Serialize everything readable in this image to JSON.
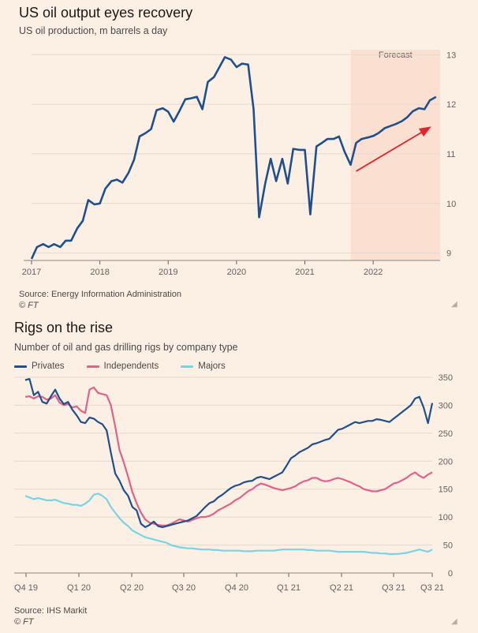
{
  "chart1": {
    "title": "US oil output eyes recovery",
    "subtitle": "US oil production, m barrels a day",
    "forecast_label": "Forecast",
    "source": "Source: Energy Information Administration",
    "credit": "© FT"
  },
  "chart2": {
    "title": "Rigs on the rise",
    "subtitle": "Number of oil and gas drilling rigs by company type",
    "source": "Source: IHS Markit",
    "credit": "© FT"
  },
  "colors": {
    "background": "#fcf0e5",
    "navy": "#1f4f8c",
    "pink": "#e0628a",
    "cyan": "#79d4e3",
    "forecast_shade": "#fbe0d2",
    "arrow": "#e2242f",
    "gridline": "#e3d8cf"
  },
  "chart_data": [
    {
      "type": "line",
      "title": "US oil output eyes recovery",
      "subtitle": "US oil production, m barrels a day",
      "x_ticks": [
        "2017",
        "2018",
        "2019",
        "2020",
        "2021",
        "2022"
      ],
      "y_ticks": [
        9,
        10,
        11,
        12,
        13
      ],
      "xlim": [
        2017.0,
        2022.98
      ],
      "ylim": [
        8.85,
        13.1
      ],
      "forecast_start": 2021.67,
      "annotation": "Forecast",
      "arrow": {
        "from": [
          2021.75,
          10.65
        ],
        "to": [
          2022.85,
          11.55
        ]
      },
      "series": [
        {
          "color": "#1f4f8c",
          "x": [
            2017.0,
            2017.08,
            2017.17,
            2017.25,
            2017.33,
            2017.42,
            2017.5,
            2017.58,
            2017.67,
            2017.75,
            2017.83,
            2017.92,
            2018.0,
            2018.08,
            2018.17,
            2018.25,
            2018.33,
            2018.42,
            2018.5,
            2018.58,
            2018.67,
            2018.75,
            2018.83,
            2018.92,
            2019.0,
            2019.08,
            2019.17,
            2019.25,
            2019.33,
            2019.42,
            2019.5,
            2019.58,
            2019.67,
            2019.75,
            2019.83,
            2019.92,
            2020.0,
            2020.08,
            2020.17,
            2020.25,
            2020.33,
            2020.42,
            2020.5,
            2020.58,
            2020.67,
            2020.75,
            2020.83,
            2020.92,
            2021.0,
            2021.08,
            2021.17,
            2021.25,
            2021.33,
            2021.42,
            2021.5,
            2021.58,
            2021.67,
            2021.75,
            2021.83,
            2021.92,
            2022.0,
            2022.08,
            2022.17,
            2022.25,
            2022.33,
            2022.42,
            2022.5,
            2022.58,
            2022.67,
            2022.75,
            2022.83,
            2022.92
          ],
          "values": [
            8.88,
            9.12,
            9.18,
            9.12,
            9.18,
            9.12,
            9.25,
            9.25,
            9.5,
            9.65,
            10.07,
            9.98,
            10.0,
            10.3,
            10.45,
            10.48,
            10.42,
            10.62,
            10.88,
            11.35,
            11.42,
            11.5,
            11.88,
            11.92,
            11.85,
            11.65,
            11.88,
            12.1,
            12.12,
            12.15,
            11.9,
            12.45,
            12.55,
            12.75,
            12.95,
            12.9,
            12.75,
            12.82,
            12.8,
            11.9,
            9.72,
            10.4,
            10.9,
            10.45,
            10.9,
            10.4,
            11.1,
            11.08,
            11.08,
            9.78,
            11.15,
            11.22,
            11.3,
            11.3,
            11.35,
            11.05,
            10.78,
            11.22,
            11.3,
            11.33,
            11.36,
            11.42,
            11.52,
            11.56,
            11.6,
            11.66,
            11.74,
            11.86,
            11.92,
            11.9,
            12.08,
            12.15
          ]
        }
      ]
    },
    {
      "type": "line",
      "title": "Rigs on the rise",
      "subtitle": "Number of oil and gas drilling rigs by company type",
      "x_ticks": [
        "Q4 19",
        "Q1 20",
        "Q2 20",
        "Q3 20",
        "Q4 20",
        "Q1 21",
        "Q2 21",
        "Q3 21",
        "Q3 21"
      ],
      "y_ticks": [
        0,
        50,
        100,
        150,
        200,
        250,
        300,
        350
      ],
      "ylim": [
        0,
        350
      ],
      "xlim": [
        0,
        96
      ],
      "series": [
        {
          "name": "Privates",
          "color": "#1f4f8c",
          "values": [
            345,
            347,
            318,
            324,
            306,
            303,
            316,
            328,
            312,
            302,
            306,
            292,
            282,
            270,
            268,
            278,
            276,
            270,
            266,
            255,
            215,
            178,
            165,
            148,
            138,
            118,
            112,
            88,
            82,
            86,
            92,
            84,
            82,
            84,
            86,
            88,
            90,
            92,
            94,
            98,
            102,
            110,
            118,
            125,
            128,
            135,
            140,
            146,
            152,
            156,
            158,
            162,
            164,
            165,
            170,
            172,
            170,
            168,
            172,
            176,
            180,
            192,
            205,
            210,
            216,
            220,
            224,
            230,
            232,
            235,
            238,
            240,
            248,
            256,
            258,
            262,
            266,
            270,
            268,
            270,
            272,
            272,
            275,
            274,
            272,
            270,
            276,
            282,
            288,
            294,
            300,
            312,
            315,
            296,
            268,
            304
          ]
        },
        {
          "name": "Independents",
          "color": "#e0628a",
          "values": [
            315,
            316,
            312,
            316,
            315,
            310,
            312,
            318,
            305,
            300,
            302,
            296,
            298,
            290,
            286,
            328,
            332,
            322,
            320,
            318,
            300,
            262,
            220,
            198,
            172,
            145,
            125,
            108,
            96,
            90,
            88,
            86,
            85,
            85,
            88,
            92,
            96,
            94,
            92,
            95,
            98,
            100,
            100,
            102,
            106,
            112,
            116,
            120,
            124,
            130,
            134,
            140,
            146,
            150,
            156,
            160,
            158,
            155,
            152,
            150,
            148,
            150,
            152,
            155,
            160,
            164,
            166,
            170,
            170,
            166,
            164,
            165,
            168,
            170,
            168,
            165,
            162,
            158,
            155,
            150,
            148,
            146,
            146,
            148,
            150,
            155,
            160,
            162,
            166,
            170,
            176,
            180,
            174,
            170,
            176,
            180
          ]
        },
        {
          "name": "Majors",
          "color": "#79d4e3",
          "values": [
            138,
            135,
            132,
            134,
            132,
            130,
            130,
            131,
            128,
            125,
            124,
            122,
            122,
            120,
            124,
            130,
            140,
            142,
            138,
            132,
            118,
            108,
            98,
            90,
            84,
            76,
            72,
            68,
            64,
            62,
            60,
            58,
            56,
            54,
            50,
            48,
            46,
            45,
            44,
            44,
            43,
            42,
            42,
            42,
            41,
            41,
            40,
            40,
            40,
            40,
            40,
            39,
            39,
            39,
            40,
            40,
            40,
            40,
            40,
            41,
            42,
            42,
            42,
            42,
            42,
            42,
            41,
            41,
            40,
            40,
            40,
            40,
            39,
            38,
            38,
            38,
            38,
            38,
            38,
            38,
            37,
            36,
            36,
            35,
            35,
            34,
            34,
            34,
            35,
            36,
            38,
            40,
            42,
            40,
            38,
            42
          ]
        }
      ]
    }
  ]
}
